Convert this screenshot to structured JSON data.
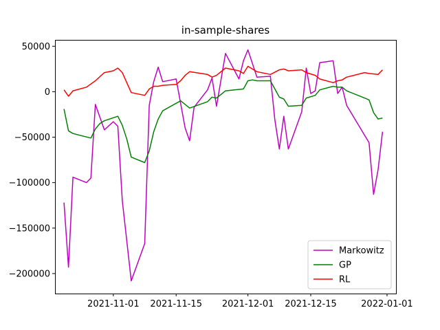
{
  "chart_data": {
    "type": "line",
    "title": "in-sample-shares",
    "xlabel": "",
    "ylabel": "",
    "xlim": [
      "2021-10-19",
      "2022-01-03"
    ],
    "ylim": [
      -222000,
      57000
    ],
    "x_ticks": [
      "2021-11-01",
      "2021-11-15",
      "2021-12-01",
      "2021-12-15",
      "2022-01-01"
    ],
    "y_ticks": [
      50000,
      0,
      -50000,
      -100000,
      -150000,
      -200000
    ],
    "y_tick_labels": [
      "50000",
      "0",
      "−50000",
      "−100000",
      "−150000",
      "−200000"
    ],
    "grid": false,
    "legend_position": "lower-right",
    "series": [
      {
        "name": "Markowitz",
        "color": "#bf00bf",
        "points": [
          [
            "2021-10-21",
            -122000
          ],
          [
            "2021-10-22",
            -193000
          ],
          [
            "2021-10-23",
            -94000
          ],
          [
            "2021-10-26",
            -100000
          ],
          [
            "2021-10-27",
            -95000
          ],
          [
            "2021-10-28",
            -14000
          ],
          [
            "2021-10-30",
            -42000
          ],
          [
            "2021-11-01",
            -33000
          ],
          [
            "2021-11-02",
            -38000
          ],
          [
            "2021-11-03",
            -120000
          ],
          [
            "2021-11-05",
            -208000
          ],
          [
            "2021-11-08",
            -167000
          ],
          [
            "2021-11-09",
            -15000
          ],
          [
            "2021-11-10",
            11000
          ],
          [
            "2021-11-11",
            27000
          ],
          [
            "2021-11-12",
            11000
          ],
          [
            "2021-11-15",
            14000
          ],
          [
            "2021-11-17",
            -40000
          ],
          [
            "2021-11-18",
            -54000
          ],
          [
            "2021-11-19",
            -17000
          ],
          [
            "2021-11-22",
            2000
          ],
          [
            "2021-11-23",
            15000
          ],
          [
            "2021-11-24",
            -16000
          ],
          [
            "2021-11-26",
            42000
          ],
          [
            "2021-11-29",
            14000
          ],
          [
            "2021-11-30",
            34000
          ],
          [
            "2021-12-01",
            46000
          ],
          [
            "2021-12-03",
            16000
          ],
          [
            "2021-12-06",
            17000
          ],
          [
            "2021-12-07",
            -31000
          ],
          [
            "2021-12-08",
            -63000
          ],
          [
            "2021-12-09",
            -27000
          ],
          [
            "2021-12-10",
            -63000
          ],
          [
            "2021-12-13",
            -22000
          ],
          [
            "2021-12-14",
            26000
          ],
          [
            "2021-12-15",
            -2000
          ],
          [
            "2021-12-16",
            1000
          ],
          [
            "2021-12-17",
            32000
          ],
          [
            "2021-12-20",
            34000
          ],
          [
            "2021-12-21",
            -2000
          ],
          [
            "2021-12-22",
            5000
          ],
          [
            "2021-12-23",
            -15000
          ],
          [
            "2021-12-28",
            -56000
          ],
          [
            "2021-12-29",
            -113000
          ],
          [
            "2021-12-30",
            -86000
          ],
          [
            "2021-12-31",
            -44000
          ]
        ]
      },
      {
        "name": "GP",
        "color": "#008000",
        "points": [
          [
            "2021-10-21",
            -19000
          ],
          [
            "2021-10-22",
            -43000
          ],
          [
            "2021-10-23",
            -46000
          ],
          [
            "2021-10-27",
            -51000
          ],
          [
            "2021-10-28",
            -41000
          ],
          [
            "2021-10-29",
            -35000
          ],
          [
            "2021-10-30",
            -32000
          ],
          [
            "2021-11-02",
            -27000
          ],
          [
            "2021-11-03",
            -37000
          ],
          [
            "2021-11-04",
            -52000
          ],
          [
            "2021-11-05",
            -72000
          ],
          [
            "2021-11-08",
            -78000
          ],
          [
            "2021-11-09",
            -65000
          ],
          [
            "2021-11-10",
            -44000
          ],
          [
            "2021-11-11",
            -30000
          ],
          [
            "2021-11-12",
            -21000
          ],
          [
            "2021-11-16",
            -10000
          ],
          [
            "2021-11-18",
            -18000
          ],
          [
            "2021-11-22",
            -11000
          ],
          [
            "2021-11-23",
            -6000
          ],
          [
            "2021-11-24",
            -7000
          ],
          [
            "2021-11-25",
            -3000
          ],
          [
            "2021-11-26",
            1000
          ],
          [
            "2021-11-30",
            3000
          ],
          [
            "2021-12-01",
            12000
          ],
          [
            "2021-12-02",
            13000
          ],
          [
            "2021-12-03",
            12000
          ],
          [
            "2021-12-06",
            12000
          ],
          [
            "2021-12-07",
            3000
          ],
          [
            "2021-12-08",
            -6000
          ],
          [
            "2021-12-09",
            -8000
          ],
          [
            "2021-12-10",
            -16000
          ],
          [
            "2021-12-13",
            -15000
          ],
          [
            "2021-12-14",
            -7000
          ],
          [
            "2021-12-16",
            -4000
          ],
          [
            "2021-12-17",
            2000
          ],
          [
            "2021-12-20",
            6000
          ],
          [
            "2021-12-21",
            5000
          ],
          [
            "2021-12-22",
            5000
          ],
          [
            "2021-12-23",
            1000
          ],
          [
            "2021-12-27",
            -7000
          ],
          [
            "2021-12-28",
            -9000
          ],
          [
            "2021-12-29",
            -23000
          ],
          [
            "2021-12-30",
            -30000
          ],
          [
            "2021-12-31",
            -29000
          ]
        ]
      },
      {
        "name": "RL",
        "color": "#ff0000",
        "points": [
          [
            "2021-10-21",
            2000
          ],
          [
            "2021-10-22",
            -5000
          ],
          [
            "2021-10-23",
            1000
          ],
          [
            "2021-10-26",
            5000
          ],
          [
            "2021-10-28",
            12000
          ],
          [
            "2021-10-30",
            21000
          ],
          [
            "2021-11-01",
            23000
          ],
          [
            "2021-11-02",
            26000
          ],
          [
            "2021-11-03",
            21000
          ],
          [
            "2021-11-04",
            10000
          ],
          [
            "2021-11-05",
            -1000
          ],
          [
            "2021-11-08",
            -4000
          ],
          [
            "2021-11-09",
            3000
          ],
          [
            "2021-11-10",
            6000
          ],
          [
            "2021-11-11",
            6000
          ],
          [
            "2021-11-12",
            7000
          ],
          [
            "2021-11-15",
            8000
          ],
          [
            "2021-11-16",
            12000
          ],
          [
            "2021-11-17",
            18000
          ],
          [
            "2021-11-18",
            22000
          ],
          [
            "2021-11-22",
            19000
          ],
          [
            "2021-11-23",
            16000
          ],
          [
            "2021-11-24",
            18000
          ],
          [
            "2021-11-26",
            26000
          ],
          [
            "2021-11-29",
            23000
          ],
          [
            "2021-11-30",
            20000
          ],
          [
            "2021-12-01",
            28000
          ],
          [
            "2021-12-03",
            22000
          ],
          [
            "2021-12-06",
            19000
          ],
          [
            "2021-12-08",
            24000
          ],
          [
            "2021-12-09",
            25000
          ],
          [
            "2021-12-10",
            23000
          ],
          [
            "2021-12-13",
            24000
          ],
          [
            "2021-12-14",
            21000
          ],
          [
            "2021-12-16",
            18000
          ],
          [
            "2021-12-17",
            14000
          ],
          [
            "2021-12-20",
            10000
          ],
          [
            "2021-12-21",
            12000
          ],
          [
            "2021-12-22",
            13000
          ],
          [
            "2021-12-23",
            16000
          ],
          [
            "2021-12-27",
            21000
          ],
          [
            "2021-12-28",
            20000
          ],
          [
            "2021-12-30",
            19000
          ],
          [
            "2021-12-31",
            24000
          ]
        ]
      }
    ]
  }
}
